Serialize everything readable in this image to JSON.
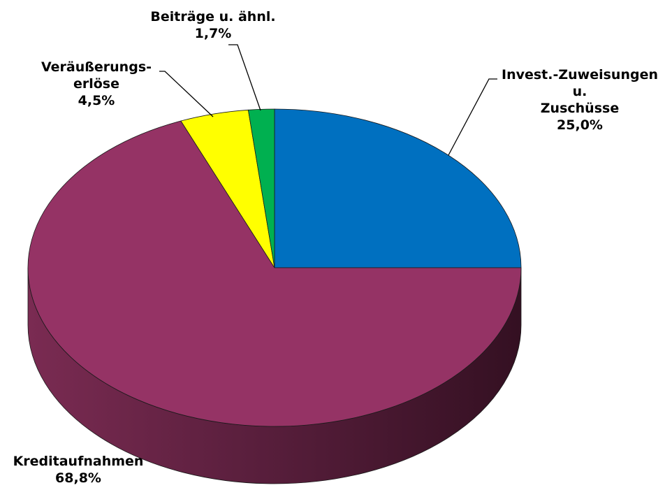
{
  "chart_data": {
    "type": "pie",
    "slices": [
      {
        "label": "Invest.-Zuweisungen u. Zuschüsse",
        "value": 25.0,
        "value_label": "25,0%",
        "color": "#0070C0",
        "label_lines": [
          "Invest.-Zuweisungen",
          "u.",
          "Zuschüsse"
        ]
      },
      {
        "label": "Kreditaufnahmen",
        "value": 68.8,
        "value_label": "68,8%",
        "color": "#953365",
        "label_lines": [
          "Kreditaufnahmen"
        ]
      },
      {
        "label": "Veräußerungserlöse",
        "value": 4.5,
        "value_label": "4,5%",
        "color": "#FFFF00",
        "label_lines": [
          "Veräußerungs-",
          "erlöse"
        ]
      },
      {
        "label": "Beiträge u. ähnl.",
        "value": 1.7,
        "value_label": "1,7%",
        "color": "#00B050",
        "label_lines": [
          "Beiträge u. ähnl."
        ]
      }
    ],
    "style": "3d",
    "legend": "none",
    "labels": "outside with leader lines"
  }
}
